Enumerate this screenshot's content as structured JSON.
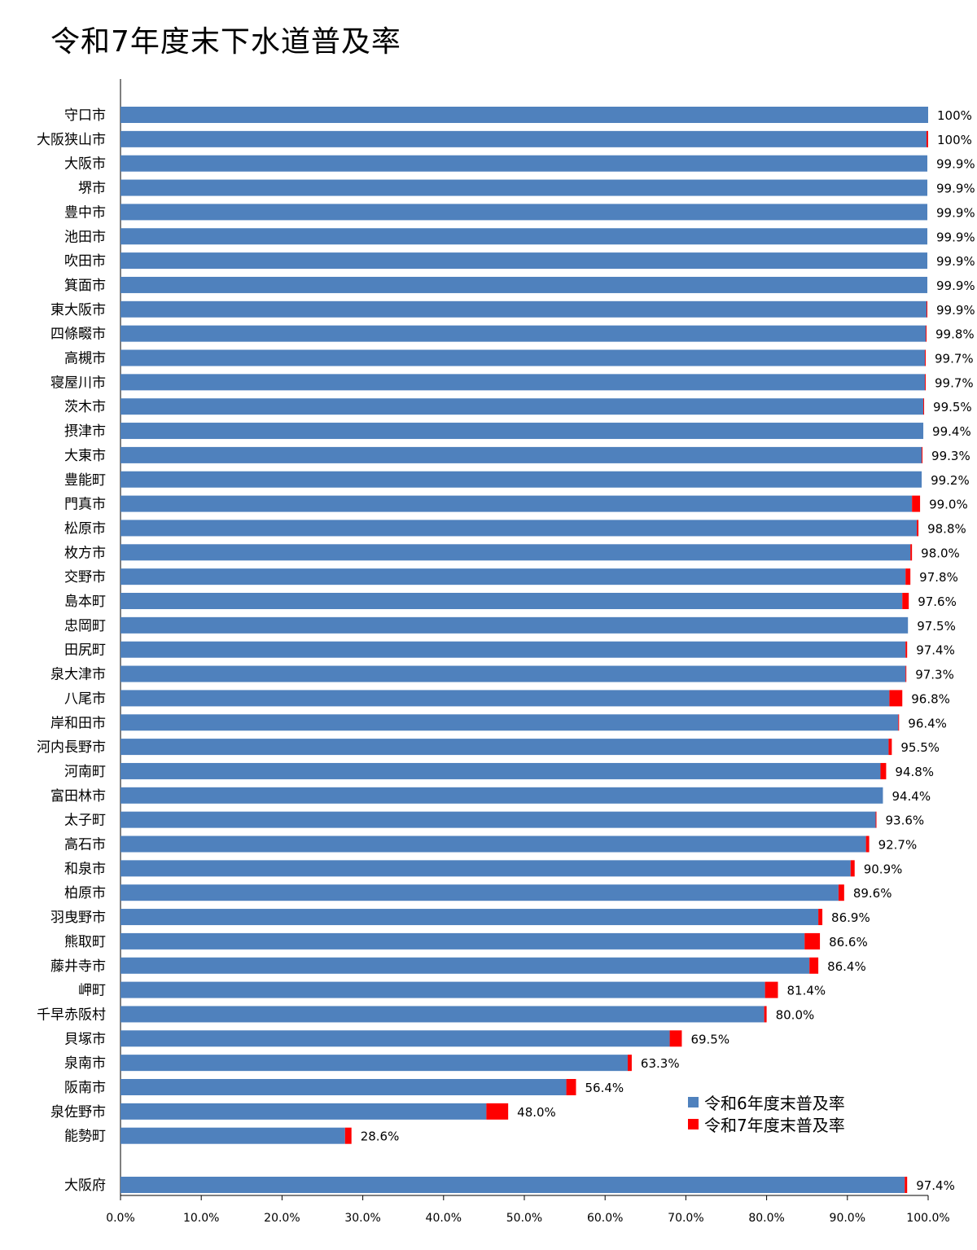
{
  "chart_data": {
    "type": "bar",
    "orientation": "horizontal",
    "stacked": true,
    "title": "令和7年度末下水道普及率",
    "categories": [
      "守口市",
      "大阪狭山市",
      "大阪市",
      "堺市",
      "豊中市",
      "池田市",
      "吹田市",
      "箕面市",
      "東大阪市",
      "四條畷市",
      "高槻市",
      "寝屋川市",
      "茨木市",
      "摂津市",
      "大東市",
      "豊能町",
      "門真市",
      "松原市",
      "枚方市",
      "交野市",
      "島本町",
      "忠岡町",
      "田尻町",
      "泉大津市",
      "八尾市",
      "岸和田市",
      "河内長野市",
      "河南町",
      "富田林市",
      "太子町",
      "高石市",
      "和泉市",
      "柏原市",
      "羽曳野市",
      "熊取町",
      "藤井寺市",
      "岬町",
      "千早赤阪村",
      "貝塚市",
      "泉南市",
      "阪南市",
      "泉佐野市",
      "能勢町",
      "大阪府"
    ],
    "value_labels": [
      "100%",
      "100%",
      "99.9%",
      "99.9%",
      "99.9%",
      "99.9%",
      "99.9%",
      "99.9%",
      "99.9%",
      "99.8%",
      "99.7%",
      "99.7%",
      "99.5%",
      "99.4%",
      "99.3%",
      "99.2%",
      "99.0%",
      "98.8%",
      "98.0%",
      "97.8%",
      "97.6%",
      "97.5%",
      "97.4%",
      "97.3%",
      "96.8%",
      "96.4%",
      "95.5%",
      "94.8%",
      "94.4%",
      "93.6%",
      "92.7%",
      "90.9%",
      "89.6%",
      "86.9%",
      "86.6%",
      "86.4%",
      "81.4%",
      "80.0%",
      "69.5%",
      "63.3%",
      "56.4%",
      "48.0%",
      "28.6%",
      "97.4%"
    ],
    "series": [
      {
        "name": "令和6年度末普及率",
        "color": "#4F81BD",
        "values": [
          100.0,
          99.8,
          99.9,
          99.9,
          99.9,
          99.9,
          99.9,
          99.9,
          99.8,
          99.7,
          99.6,
          99.6,
          99.4,
          99.4,
          99.2,
          99.2,
          98.0,
          98.6,
          97.8,
          97.2,
          96.8,
          97.5,
          97.2,
          97.2,
          95.2,
          96.3,
          95.1,
          94.1,
          94.4,
          93.5,
          92.3,
          90.4,
          88.9,
          86.4,
          84.7,
          85.3,
          79.8,
          79.7,
          68.0,
          62.8,
          55.2,
          45.3,
          27.8,
          97.1
        ]
      },
      {
        "name": "令和7年度末普及率",
        "color": "#FF0000",
        "values": [
          0.0,
          0.2,
          0.0,
          0.0,
          0.0,
          0.0,
          0.0,
          0.0,
          0.1,
          0.1,
          0.1,
          0.1,
          0.1,
          0.0,
          0.1,
          0.0,
          1.0,
          0.2,
          0.2,
          0.6,
          0.8,
          0.0,
          0.2,
          0.1,
          1.6,
          0.1,
          0.4,
          0.7,
          0.0,
          0.1,
          0.4,
          0.5,
          0.7,
          0.5,
          1.9,
          1.1,
          1.6,
          0.3,
          1.5,
          0.5,
          1.2,
          2.7,
          0.8,
          0.3
        ]
      }
    ],
    "xlim": [
      0,
      100
    ],
    "x_ticks": [
      "0.0%",
      "10.0%",
      "20.0%",
      "30.0%",
      "40.0%",
      "50.0%",
      "60.0%",
      "70.0%",
      "80.0%",
      "90.0%",
      "100.0%"
    ],
    "legend_position": "bottom-right",
    "grid": false
  }
}
